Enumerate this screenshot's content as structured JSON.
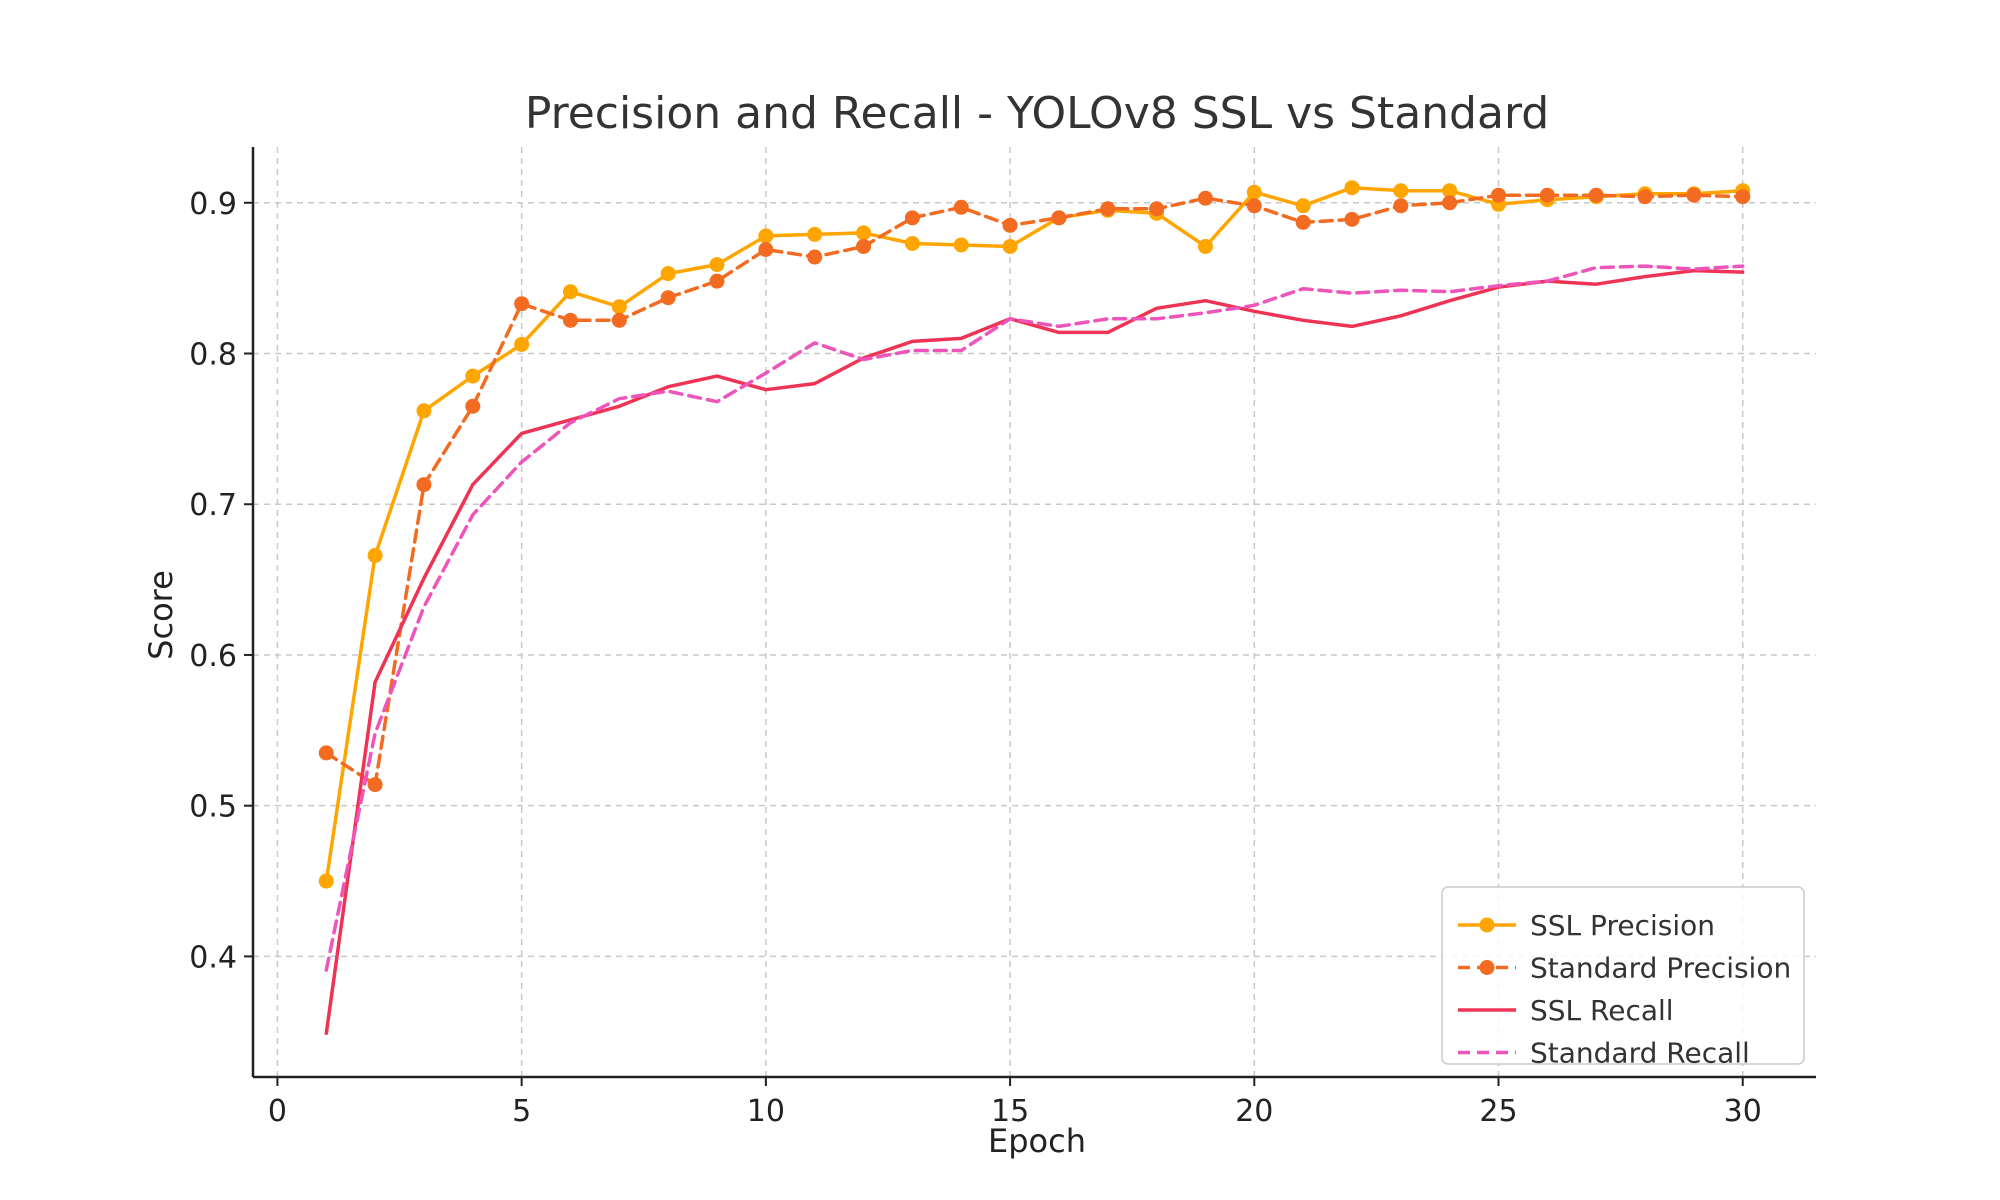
{
  "chart_data": {
    "type": "line",
    "title": "Precision and Recall - YOLOv8 SSL vs Standard",
    "xlabel": "Epoch",
    "ylabel": "Score",
    "xlim": [
      -0.5,
      31.5
    ],
    "ylim": [
      0.32,
      0.937
    ],
    "x_ticks": [
      0,
      5,
      10,
      15,
      20,
      25,
      30
    ],
    "y_ticks": [
      0.4,
      0.5,
      0.6,
      0.7,
      0.8,
      0.9
    ],
    "x_tick_labels": [
      "0",
      "5",
      "10",
      "15",
      "20",
      "25",
      "30"
    ],
    "y_tick_labels": [
      "0.4",
      "0.5",
      "0.6",
      "0.7",
      "0.8",
      "0.9"
    ],
    "grid": true,
    "legend_position": "lower-right",
    "x": [
      1,
      2,
      3,
      4,
      5,
      6,
      7,
      8,
      9,
      10,
      11,
      12,
      13,
      14,
      15,
      16,
      17,
      18,
      19,
      20,
      21,
      22,
      23,
      24,
      25,
      26,
      27,
      28,
      29,
      30
    ],
    "series": [
      {
        "name": "SSL Precision",
        "color": "#FFA500",
        "style": "solid",
        "marker": "circle",
        "values": [
          0.45,
          0.666,
          0.762,
          0.785,
          0.806,
          0.841,
          0.831,
          0.853,
          0.859,
          0.878,
          0.879,
          0.88,
          0.873,
          0.872,
          0.871,
          0.89,
          0.895,
          0.893,
          0.871,
          0.907,
          0.898,
          0.91,
          0.908,
          0.908,
          0.899,
          0.902,
          0.904,
          0.906,
          0.906,
          0.908
        ]
      },
      {
        "name": "Standard Precision",
        "color": "#F26B21",
        "style": "dashed",
        "marker": "circle",
        "values": [
          0.535,
          0.514,
          0.713,
          0.765,
          0.833,
          0.822,
          0.822,
          0.837,
          0.848,
          0.869,
          0.864,
          0.871,
          0.89,
          0.897,
          0.885,
          0.89,
          0.896,
          0.896,
          0.903,
          0.898,
          0.887,
          0.889,
          0.898,
          0.9,
          0.905,
          0.905,
          0.905,
          0.904,
          0.905,
          0.904
        ]
      },
      {
        "name": "SSL Recall",
        "color": "#EE3355",
        "style": "solid",
        "marker": "none",
        "values": [
          0.349,
          0.582,
          0.651,
          0.713,
          0.747,
          0.756,
          0.765,
          0.778,
          0.785,
          0.776,
          0.78,
          0.797,
          0.808,
          0.81,
          0.823,
          0.814,
          0.814,
          0.83,
          0.835,
          0.828,
          0.822,
          0.818,
          0.825,
          0.835,
          0.844,
          0.848,
          0.846,
          0.851,
          0.855,
          0.854
        ]
      },
      {
        "name": "Standard Recall",
        "color": "#EE55BB",
        "style": "dashed",
        "marker": "none",
        "values": [
          0.391,
          0.548,
          0.632,
          0.693,
          0.728,
          0.754,
          0.77,
          0.775,
          0.768,
          0.787,
          0.807,
          0.796,
          0.802,
          0.802,
          0.823,
          0.818,
          0.823,
          0.823,
          0.827,
          0.832,
          0.843,
          0.84,
          0.842,
          0.841,
          0.845,
          0.848,
          0.857,
          0.858,
          0.856,
          0.858
        ]
      }
    ]
  }
}
